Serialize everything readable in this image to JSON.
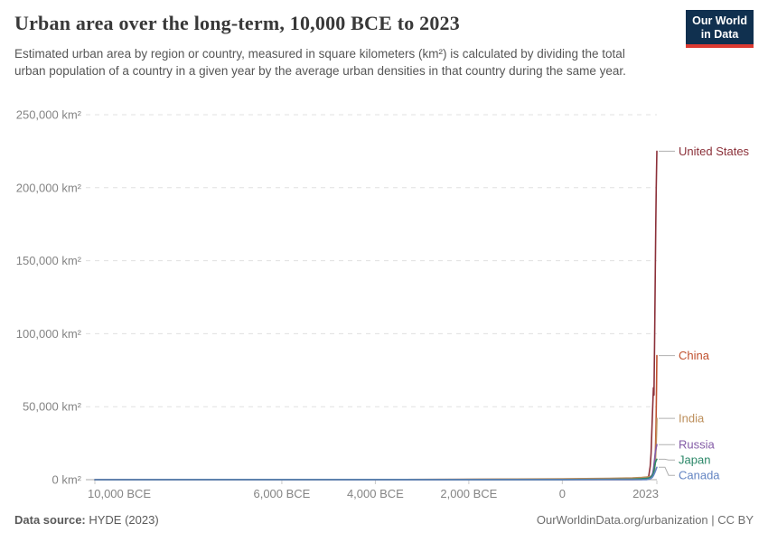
{
  "header": {
    "title": "Urban area over the long-term, 10,000 BCE to 2023",
    "subtitle": "Estimated urban area by region or country, measured in square kilometers (km²) is calculated by dividing the total urban population of a country in a given year by the average urban densities in that country during the same year."
  },
  "logo": {
    "line1": "Our World",
    "line2": "in Data",
    "bg_color": "#10304F",
    "bar_color": "#DC3A31"
  },
  "footer": {
    "source_label": "Data source:",
    "source_value": " HYDE (2023)",
    "credit": "OurWorldinData.org/urbanization | CC BY"
  },
  "chart_data": {
    "type": "line",
    "title": "Urban area over the long-term, 10,000 BCE to 2023",
    "xlabel": "",
    "ylabel": "",
    "xlim": [
      -10000,
      2023
    ],
    "ylim": [
      0,
      250000
    ],
    "grid": "horizontal-dashed",
    "legend_position": "right-edge-labels",
    "x_ticks": [
      {
        "value": -10000,
        "label": "10,000 BCE"
      },
      {
        "value": -6000,
        "label": "6,000 BCE"
      },
      {
        "value": -4000,
        "label": "4,000 BCE"
      },
      {
        "value": -2000,
        "label": "2,000 BCE"
      },
      {
        "value": 0,
        "label": "0"
      },
      {
        "value": 2023,
        "label": "2023"
      }
    ],
    "y_ticks": [
      {
        "value": 0,
        "label": "0 km²"
      },
      {
        "value": 50000,
        "label": "50,000 km²"
      },
      {
        "value": 100000,
        "label": "100,000 km²"
      },
      {
        "value": 150000,
        "label": "150,000 km²"
      },
      {
        "value": 200000,
        "label": "200,000 km²"
      },
      {
        "value": 250000,
        "label": "250,000 km²"
      }
    ],
    "series": [
      {
        "name": "United States",
        "color": "#8B3039",
        "points": [
          [
            -10000,
            0
          ],
          [
            -2000,
            0
          ],
          [
            0,
            20
          ],
          [
            1500,
            60
          ],
          [
            1700,
            120
          ],
          [
            1800,
            500
          ],
          [
            1850,
            2500
          ],
          [
            1880,
            9000
          ],
          [
            1900,
            18000
          ],
          [
            1920,
            38000
          ],
          [
            1940,
            55000
          ],
          [
            1950,
            63000
          ],
          [
            1962,
            58000
          ],
          [
            1975,
            95000
          ],
          [
            1990,
            145000
          ],
          [
            2000,
            175000
          ],
          [
            2010,
            200000
          ],
          [
            2023,
            225000
          ]
        ]
      },
      {
        "name": "China",
        "color": "#C0512F",
        "points": [
          [
            -10000,
            0
          ],
          [
            -5000,
            50
          ],
          [
            -2000,
            180
          ],
          [
            0,
            450
          ],
          [
            1000,
            700
          ],
          [
            1500,
            900
          ],
          [
            1700,
            1100
          ],
          [
            1800,
            1300
          ],
          [
            1880,
            1500
          ],
          [
            1920,
            2200
          ],
          [
            1950,
            4500
          ],
          [
            1975,
            9000
          ],
          [
            1990,
            17000
          ],
          [
            2005,
            38000
          ],
          [
            2015,
            62000
          ],
          [
            2023,
            85000
          ]
        ]
      },
      {
        "name": "India",
        "color": "#BC8E5A",
        "points": [
          [
            -10000,
            0
          ],
          [
            -5000,
            80
          ],
          [
            -2000,
            250
          ],
          [
            0,
            600
          ],
          [
            1000,
            900
          ],
          [
            1500,
            1200
          ],
          [
            1700,
            1500
          ],
          [
            1800,
            1800
          ],
          [
            1850,
            2000
          ],
          [
            1900,
            2400
          ],
          [
            1950,
            3500
          ],
          [
            1970,
            6000
          ],
          [
            1990,
            12000
          ],
          [
            2005,
            22000
          ],
          [
            2015,
            32000
          ],
          [
            2023,
            42000
          ]
        ]
      },
      {
        "name": "Russia",
        "color": "#835BA6",
        "points": [
          [
            -10000,
            0
          ],
          [
            0,
            80
          ],
          [
            1500,
            250
          ],
          [
            1700,
            400
          ],
          [
            1800,
            700
          ],
          [
            1850,
            1000
          ],
          [
            1900,
            2000
          ],
          [
            1930,
            4000
          ],
          [
            1950,
            7000
          ],
          [
            1970,
            13000
          ],
          [
            1990,
            19000
          ],
          [
            2005,
            21500
          ],
          [
            2023,
            24000
          ]
        ]
      },
      {
        "name": "Japan",
        "color": "#2B8768",
        "points": [
          [
            -10000,
            0
          ],
          [
            0,
            60
          ],
          [
            1000,
            200
          ],
          [
            1500,
            400
          ],
          [
            1700,
            700
          ],
          [
            1800,
            900
          ],
          [
            1880,
            1300
          ],
          [
            1920,
            2500
          ],
          [
            1950,
            4500
          ],
          [
            1970,
            8000
          ],
          [
            1990,
            11500
          ],
          [
            2005,
            13000
          ],
          [
            2023,
            14000
          ]
        ]
      },
      {
        "name": "Canada",
        "color": "#6384C2",
        "points": [
          [
            -10000,
            0
          ],
          [
            1700,
            10
          ],
          [
            1800,
            80
          ],
          [
            1850,
            300
          ],
          [
            1900,
            900
          ],
          [
            1930,
            1800
          ],
          [
            1950,
            2800
          ],
          [
            1975,
            4500
          ],
          [
            1995,
            6200
          ],
          [
            2010,
            7500
          ],
          [
            2023,
            8500
          ]
        ]
      }
    ]
  }
}
